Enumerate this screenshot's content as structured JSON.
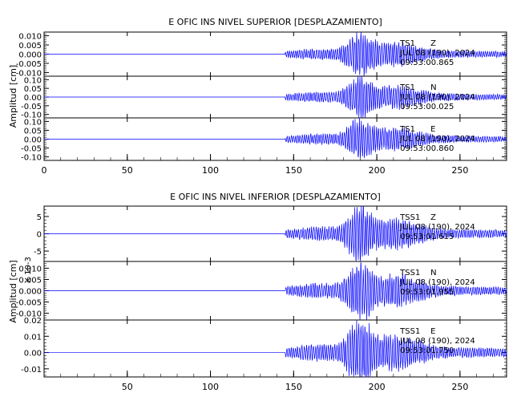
{
  "chart_data": [
    {
      "type": "line",
      "title": "E OFIC INS NIVEL SUPERIOR [DESPLAZAMIENTO]",
      "ylabel": "Amplitud [cm]",
      "ylabel_extra": "",
      "xlim": [
        0,
        278
      ],
      "x_ticks": [
        0,
        50,
        100,
        150,
        200,
        250
      ],
      "grid": false,
      "line_color": "#0000ff",
      "panels": [
        {
          "station": "TS1",
          "component": "Z",
          "date": "JUL 08 (190), 2024",
          "time": "09:53:00.865",
          "ylim": [
            -0.012,
            0.012
          ],
          "ticks": [
            -0.01,
            -0.005,
            0.0,
            0.005,
            0.01
          ],
          "tick_labels": [
            "-0.010",
            "-0.005",
            "0.000",
            "0.005",
            "0.010"
          ],
          "signal_start": 145
        },
        {
          "station": "TS1",
          "component": "N",
          "date": "JUL 08 (190), 2024",
          "time": "09:53:00.025",
          "ylim": [
            -0.12,
            0.12
          ],
          "ticks": [
            -0.1,
            -0.05,
            0.0,
            0.05,
            0.1
          ],
          "tick_labels": [
            "-0.10",
            "-0.05",
            "0.00",
            "0.05",
            "0.10"
          ],
          "signal_start": 145
        },
        {
          "station": "TS1",
          "component": "E",
          "date": "JUL 08 (190), 2024",
          "time": "09:53:00.860",
          "ylim": [
            -0.12,
            0.12
          ],
          "ticks": [
            -0.1,
            -0.05,
            0.0,
            0.05,
            0.1
          ],
          "tick_labels": [
            "-0.10",
            "-0.05",
            "0.00",
            "0.05",
            "0.10"
          ],
          "signal_start": 145
        }
      ]
    },
    {
      "type": "line",
      "title": "E OFIC INS NIVEL INFERIOR [DESPLAZAMIENTO]",
      "ylabel": "Amplitud [cm]",
      "ylabel_extra": "X 10-3",
      "xlim": [
        0,
        278
      ],
      "x_ticks": [
        50,
        100,
        150,
        200,
        250
      ],
      "grid": false,
      "line_color": "#0000ff",
      "panels": [
        {
          "station": "TSS1",
          "component": "Z",
          "date": "JUL 08 (190), 2024",
          "time": "09:53:01.615",
          "ylim": [
            -8,
            8
          ],
          "ticks": [
            -5,
            0,
            5
          ],
          "tick_labels": [
            "-5",
            "0",
            "5"
          ],
          "signal_start": 145
        },
        {
          "station": "TSS1",
          "component": "N",
          "date": "JUL 08 (190), 2024",
          "time": "09:53:01.955",
          "ylim": [
            -0.013,
            0.013
          ],
          "ticks": [
            -0.01,
            -0.005,
            0.0,
            0.005,
            0.01
          ],
          "tick_labels": [
            "-0.010",
            "-0.005",
            "0.000",
            "0.005",
            "0.010"
          ],
          "signal_start": 145
        },
        {
          "station": "TSS1",
          "component": "E",
          "date": "JUL 08 (190), 2024",
          "time": "09:53:01.750",
          "ylim": [
            -0.015,
            0.02
          ],
          "ticks": [
            -0.01,
            0.0,
            0.01,
            0.02
          ],
          "tick_labels": [
            "-0.01",
            "0.00",
            "0.01",
            "0.02"
          ],
          "signal_start": 145
        }
      ]
    }
  ]
}
